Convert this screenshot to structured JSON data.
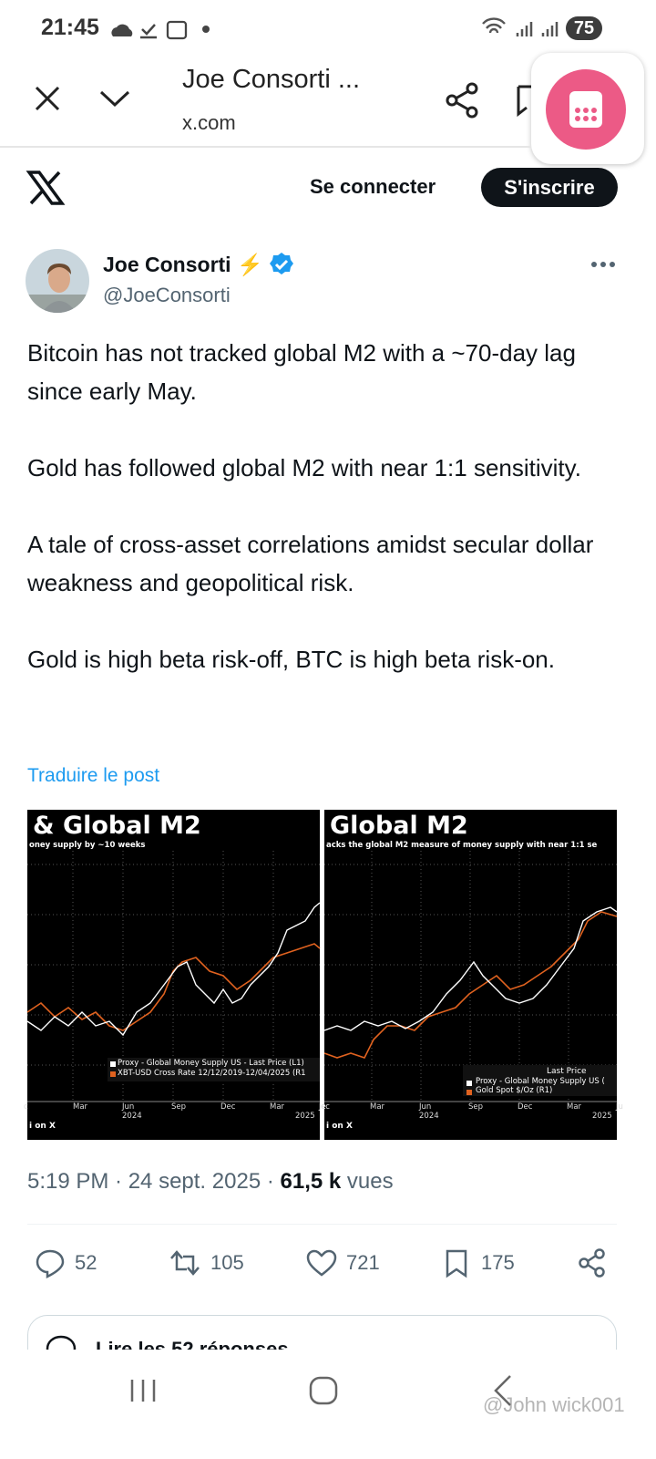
{
  "status_bar": {
    "time": "21:45",
    "battery": "75"
  },
  "browser_bar": {
    "title": "Joe Consorti ...",
    "url": "x.com"
  },
  "header": {
    "login": "Se connecter",
    "signup": "S'inscrire"
  },
  "post": {
    "author": {
      "name": "Joe Consorti",
      "emoji": "⚡",
      "handle": "@JoeConsorti"
    },
    "paragraphs": [
      "Bitcoin has not tracked global M2 with a ~70-day lag since early May.",
      "Gold has followed global M2 with near 1:1 sensitivity.",
      "A tale of cross-asset correlations amidst secular dollar weakness and geopolitical risk.",
      "Gold is high beta risk-off, BTC is high beta risk-on."
    ],
    "translate": "Traduire le post",
    "images": [
      {
        "title": "& Global M2",
        "subtitle": "oney supply by ~10 weeks",
        "legend": [
          "Proxy - Global Money Supply US - Last Price (L1)",
          "XBT-USD Cross Rate 12/12/2019-12/04/2025 (R1"
        ],
        "months": [
          "c",
          "Mar",
          "Jun",
          "Sep",
          "Dec",
          "Mar",
          "Je"
        ],
        "years": [
          "2024",
          "2025"
        ],
        "credit": "i on X"
      },
      {
        "title": "Global M2",
        "subtitle": "acks the global M2 measure of money supply with near 1:1 se",
        "legend_header": "Last Price",
        "legend": [
          "Proxy - Global Money Supply US (",
          "Gold Spot $/Oz  (R1)"
        ],
        "months": [
          "ec",
          "Mar",
          "Jun",
          "Sep",
          "Dec",
          "Mar",
          "Ju"
        ],
        "years": [
          "2024",
          "2025"
        ],
        "credit": "i on X"
      }
    ],
    "meta": {
      "timestamp": "5:19 PM · 24 sept. 2025",
      "separator": "·",
      "views": "61,5 k",
      "views_label": "vues"
    },
    "actions": {
      "replies": "52",
      "reposts": "105",
      "likes": "721",
      "bookmarks": "175"
    },
    "replies_link": "Lire les 52 réponses"
  },
  "watermark": "@John wick001"
}
